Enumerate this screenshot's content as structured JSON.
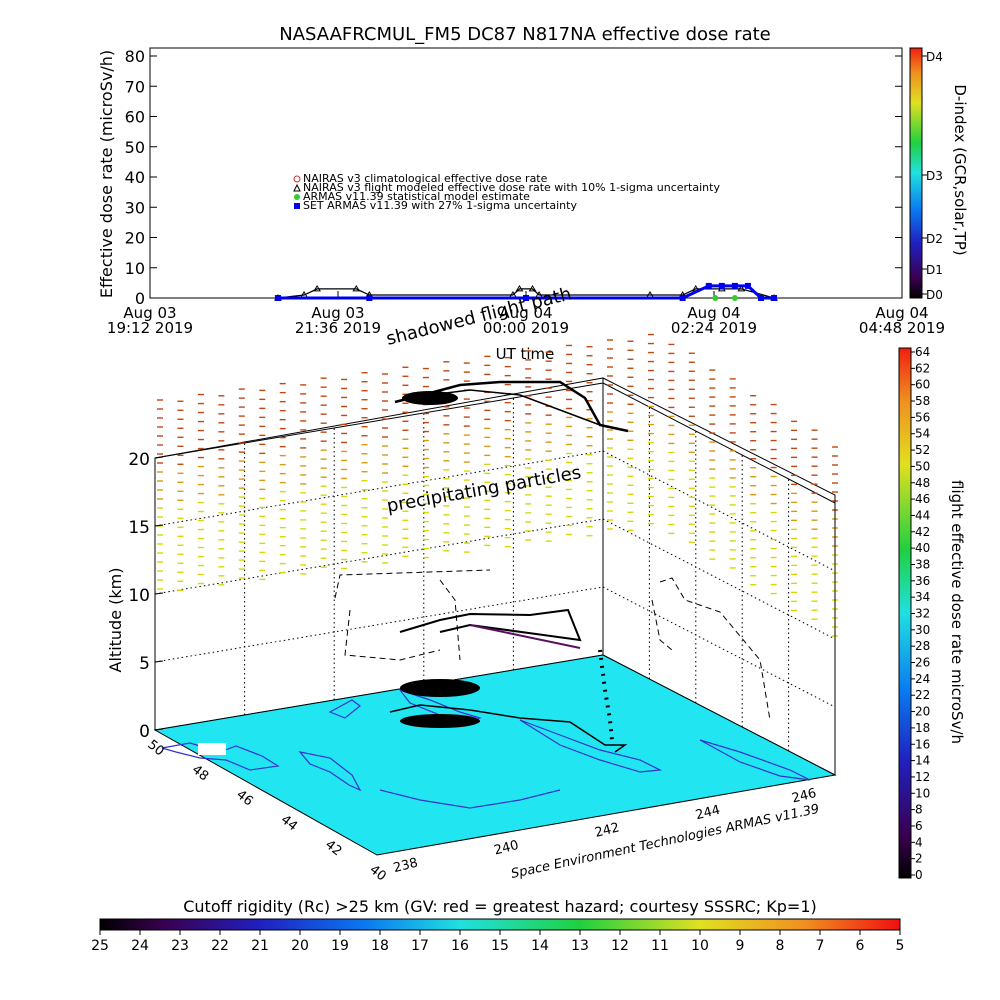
{
  "top_panel": {
    "title": "NASAAFRCMUL_FM5 DC87 N817NA effective dose rate",
    "ylabel": "Effective dose rate (microSv/h)",
    "xlabel": "UT time",
    "yticks": [
      "0",
      "10",
      "20",
      "30",
      "40",
      "50",
      "60",
      "70",
      "80"
    ],
    "xticks": [
      {
        "line1": "Aug 03",
        "line2": "19:12 2019"
      },
      {
        "line1": "Aug 03",
        "line2": "21:36 2019"
      },
      {
        "line1": "Aug 04",
        "line2": "00:00 2019"
      },
      {
        "line1": "Aug 04",
        "line2": "02:24 2019"
      },
      {
        "line1": "Aug 04",
        "line2": "04:48 2019"
      }
    ],
    "legend": [
      {
        "label": "NAIRAS v3 climatological effective dose rate",
        "color": "#cc3333",
        "symbol": "circle"
      },
      {
        "label": "NAIRAS v3 flight modeled effective dose rate with 10% 1-sigma uncertainty",
        "color": "#000000",
        "symbol": "triangle"
      },
      {
        "label": "ARMAS v11.39 statistical model estimate",
        "color": "#33cc33",
        "symbol": "star"
      },
      {
        "label": "SET ARMAS v11.39 with 27% 1-sigma uncertainty",
        "color": "#0000ee",
        "symbol": "square"
      }
    ],
    "dindex_label": "D-index (GCR,solar,TP)",
    "dindex_ticks": [
      "D0",
      "D1",
      "D2",
      "D3",
      "D4"
    ]
  },
  "main_panel": {
    "zlabel": "Altitude (km)",
    "zticks": [
      "0",
      "5",
      "10",
      "15",
      "20"
    ],
    "lon_ticks": [
      "238",
      "240",
      "242",
      "244",
      "246"
    ],
    "lat_ticks": [
      "50",
      "48",
      "46",
      "44",
      "42",
      "40"
    ],
    "annotation_shadowed": "shadowed flight path",
    "annotation_precip": "precipitating particles",
    "credit": "Space Environment Technologies ARMAS v11.39",
    "colorbar_label": "flight effective dose rate microSv/h",
    "colorbar_ticks": [
      "0",
      "2",
      "4",
      "6",
      "8",
      "10",
      "12",
      "14",
      "16",
      "18",
      "20",
      "22",
      "24",
      "26",
      "28",
      "30",
      "32",
      "34",
      "36",
      "38",
      "40",
      "42",
      "44",
      "46",
      "48",
      "50",
      "52",
      "54",
      "56",
      "58",
      "60",
      "62",
      "64"
    ]
  },
  "bottom_bar": {
    "label": "Cutoff rigidity (Rc) >25 km (GV: red = greatest hazard; courtesy SSSRC; Kp=1)",
    "ticks": [
      "25",
      "24",
      "23",
      "22",
      "21",
      "20",
      "19",
      "18",
      "17",
      "16",
      "15",
      "14",
      "13",
      "12",
      "11",
      "10",
      "9",
      "8",
      "7",
      "6",
      "5"
    ]
  },
  "chart_data": [
    {
      "type": "scatter",
      "title": "NASAAFRCMUL_FM5 DC87 N817NA effective dose rate",
      "xlabel": "UT time",
      "ylabel": "Effective dose rate (microSv/h)",
      "ylim": [
        0,
        80
      ],
      "x_axis": "time",
      "xlim": [
        "Aug 03 19:12 2019",
        "Aug 04 04:48 2019"
      ],
      "series": [
        {
          "name": "NAIRAS v3 flight modeled effective dose rate with 10% 1-sigma uncertainty",
          "x": [
            "20:50",
            "21:10",
            "21:20",
            "21:50",
            "22:00",
            "23:50",
            "23:55",
            "00:05",
            "00:10",
            "01:35",
            "02:00",
            "02:10",
            "02:30",
            "02:45",
            "03:10"
          ],
          "y": [
            0,
            1,
            3,
            3,
            1,
            1,
            3,
            3,
            1,
            1,
            1,
            3,
            3,
            3,
            0
          ]
        },
        {
          "name": "SET ARMAS v11.39 with 27% 1-sigma uncertainty",
          "x": [
            "20:50",
            "22:00",
            "00:00",
            "02:00",
            "02:20",
            "02:30",
            "02:40",
            "02:50",
            "03:00",
            "03:10"
          ],
          "y": [
            0,
            0,
            0,
            0,
            4,
            4,
            4,
            4,
            0,
            0
          ]
        },
        {
          "name": "ARMAS v11.39 statistical model estimate",
          "x": [
            "02:25",
            "02:40"
          ],
          "y": [
            0,
            0
          ]
        }
      ]
    },
    {
      "type": "heatmap",
      "title": "",
      "xlabel": "",
      "ylabel": "",
      "zlabel": "Altitude (km)",
      "zlim": [
        0,
        20
      ],
      "colorbar": {
        "label": "flight effective dose rate microSv/h",
        "range": [
          0,
          64
        ]
      }
    }
  ],
  "colors": {
    "ocean": "#22e5f2",
    "coast": "#3333cc",
    "precip_high": "#c04810",
    "precip_low": "#d8d800"
  }
}
